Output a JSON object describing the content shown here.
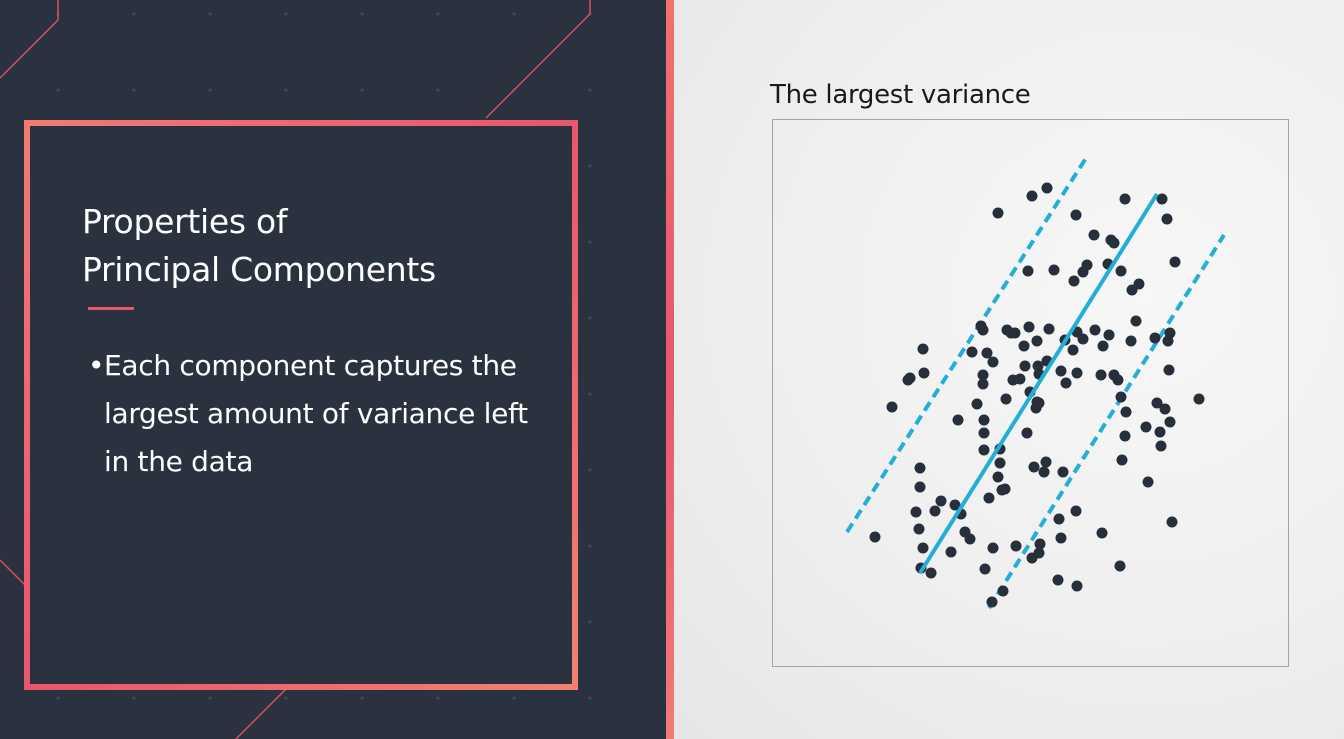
{
  "card": {
    "title": "Properties of\nPrincipal Components",
    "bullet_symbol": "•",
    "bullet_text": "Each component captures the largest amount of variance left in the data"
  },
  "figure": {
    "title": "The largest variance"
  },
  "colors": {
    "accent_pink": "#e8566f",
    "panel_dark": "#29323e",
    "line_blue": "#21aed8",
    "point_dark": "#262f3a",
    "frame": "#9aa5b8"
  },
  "chart_data": {
    "type": "scatter",
    "title": "The largest variance",
    "xlabel": "",
    "ylabel": "",
    "xlim": [
      0,
      517
    ],
    "ylim": [
      0,
      548
    ],
    "grid": false,
    "points": [
      [
        225,
        93
      ],
      [
        259,
        76
      ],
      [
        274,
        68
      ],
      [
        352,
        79
      ],
      [
        389,
        79
      ],
      [
        394,
        99
      ],
      [
        321,
        115
      ],
      [
        338,
        120
      ],
      [
        341,
        123
      ],
      [
        402,
        142
      ],
      [
        335,
        144
      ],
      [
        281,
        150
      ],
      [
        310,
        152
      ],
      [
        301,
        161
      ],
      [
        255,
        151
      ],
      [
        348,
        151
      ],
      [
        366,
        164
      ],
      [
        359,
        170
      ],
      [
        363,
        201
      ],
      [
        397,
        213
      ],
      [
        395,
        221
      ],
      [
        382,
        218
      ],
      [
        336,
        215
      ],
      [
        330,
        226
      ],
      [
        304,
        212
      ],
      [
        292,
        220
      ],
      [
        208,
        206
      ],
      [
        210,
        210
      ],
      [
        199,
        232
      ],
      [
        214,
        233
      ],
      [
        251,
        226
      ],
      [
        264,
        221
      ],
      [
        256,
        207
      ],
      [
        242,
        213
      ],
      [
        234,
        210
      ],
      [
        276,
        209
      ],
      [
        322,
        210
      ],
      [
        310,
        219
      ],
      [
        300,
        230
      ],
      [
        265,
        246
      ],
      [
        252,
        246
      ],
      [
        247,
        259
      ],
      [
        240,
        260
      ],
      [
        220,
        242
      ],
      [
        210,
        255
      ],
      [
        150,
        229
      ],
      [
        137,
        258
      ],
      [
        151,
        253
      ],
      [
        210,
        264
      ],
      [
        204,
        284
      ],
      [
        233,
        279
      ],
      [
        257,
        272
      ],
      [
        263,
        288
      ],
      [
        293,
        263
      ],
      [
        328,
        255
      ],
      [
        341,
        255
      ],
      [
        358,
        221
      ],
      [
        304,
        253
      ],
      [
        345,
        260
      ],
      [
        288,
        251
      ],
      [
        274,
        241
      ],
      [
        266,
        254
      ],
      [
        349,
        340
      ],
      [
        373,
        307
      ],
      [
        348,
        277
      ],
      [
        397,
        302
      ],
      [
        353,
        292
      ],
      [
        352,
        316
      ],
      [
        426,
        279
      ],
      [
        396,
        250
      ],
      [
        387,
        312
      ],
      [
        261,
        347
      ],
      [
        227,
        343
      ],
      [
        229,
        370
      ],
      [
        273,
        342
      ],
      [
        254,
        313
      ],
      [
        232,
        369
      ],
      [
        216,
        378
      ],
      [
        182,
        385
      ],
      [
        168,
        381
      ],
      [
        188,
        394
      ],
      [
        143,
        392
      ],
      [
        162,
        391
      ],
      [
        147,
        348
      ],
      [
        147,
        367
      ],
      [
        146,
        409
      ],
      [
        150,
        428
      ],
      [
        148,
        448
      ],
      [
        158,
        453
      ],
      [
        178,
        432
      ],
      [
        192,
        412
      ],
      [
        197,
        419
      ],
      [
        220,
        428
      ],
      [
        243,
        426
      ],
      [
        259,
        438
      ],
      [
        266,
        433
      ],
      [
        267,
        424
      ],
      [
        286,
        399
      ],
      [
        288,
        418
      ],
      [
        285,
        460
      ],
      [
        329,
        413
      ],
      [
        219,
        482
      ],
      [
        230,
        471
      ],
      [
        212,
        449
      ],
      [
        102,
        417
      ],
      [
        119,
        287
      ],
      [
        135,
        260
      ],
      [
        185,
        300
      ],
      [
        211,
        300
      ],
      [
        211,
        313
      ],
      [
        211,
        330
      ],
      [
        225,
        357
      ],
      [
        264,
        282
      ],
      [
        375,
        362
      ],
      [
        388,
        326
      ],
      [
        384,
        283
      ],
      [
        347,
        446
      ],
      [
        304,
        466
      ],
      [
        227,
        329
      ],
      [
        303,
        391
      ],
      [
        290,
        352
      ],
      [
        271,
        352
      ],
      [
        399,
        402
      ],
      [
        392,
        289
      ],
      [
        266,
        283
      ],
      [
        238,
        213
      ],
      [
        314,
        145
      ],
      [
        303,
        95
      ]
    ],
    "principal_axis": [
      [
        147,
        453
      ],
      [
        384,
        74
      ]
    ],
    "bounds": [
      [
        74,
        412
      ],
      [
        315,
        35
      ]
    ],
    "bounds_lower": [
      [
        216,
        488
      ],
      [
        451,
        115
      ]
    ]
  }
}
